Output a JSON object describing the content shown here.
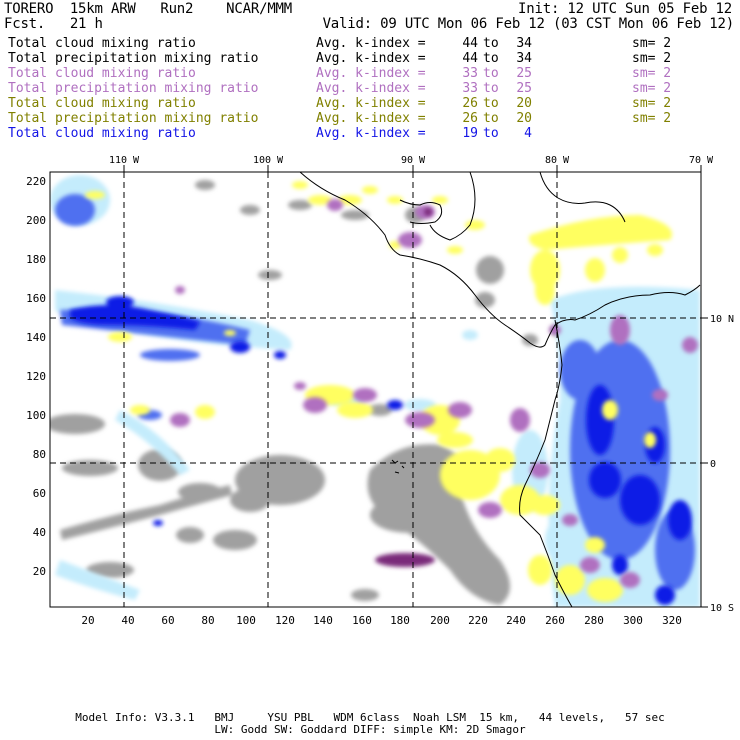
{
  "header": {
    "model": "TORERO  15km ARW   Run2    NCAR/MMM",
    "init": "Init: 12 UTC Sun 05 Feb 12",
    "fcst": "Fcst.   21 h",
    "valid": "Valid: 09 UTC Mon 06 Feb 12 (03 CST Mon 06 Feb 12)"
  },
  "legend": [
    {
      "field": "Total cloud mixing ratio",
      "avg": "Avg. k-index =",
      "lo": "44",
      "to": "to",
      "hi": "34",
      "sm": "sm= 2",
      "color": "#000000"
    },
    {
      "field": "Total precipitation mixing ratio",
      "avg": "Avg. k-index =",
      "lo": "44",
      "to": "to",
      "hi": "34",
      "sm": "sm= 2",
      "color": "#000000"
    },
    {
      "field": "Total cloud mixing ratio",
      "avg": "Avg. k-index =",
      "lo": "33",
      "to": "to",
      "hi": "25",
      "sm": "sm= 2",
      "color": "#b070c0"
    },
    {
      "field": "Total precipitation mixing ratio",
      "avg": "Avg. k-index =",
      "lo": "33",
      "to": "to",
      "hi": "25",
      "sm": "sm= 2",
      "color": "#b070c0"
    },
    {
      "field": "Total cloud mixing ratio",
      "avg": "Avg. k-index =",
      "lo": "26",
      "to": "to",
      "hi": "20",
      "sm": "sm= 2",
      "color": "#808000"
    },
    {
      "field": "Total precipitation mixing ratio",
      "avg": "Avg. k-index =",
      "lo": "26",
      "to": "to",
      "hi": "20",
      "sm": "sm= 2",
      "color": "#808000"
    },
    {
      "field": "Total cloud mixing ratio",
      "avg": "Avg. k-index =",
      "lo": "19",
      "to": "to",
      "hi": "4",
      "sm": "",
      "color": "#1414e6"
    }
  ],
  "map": {
    "lon_labels": [
      "110 W",
      "100 W",
      "90 W",
      "80 W",
      "70 W"
    ],
    "lat_labels": [
      "10 N",
      "0",
      "10 S"
    ],
    "x_ticks": [
      "20",
      "40",
      "60",
      "80",
      "100",
      "120",
      "140",
      "160",
      "180",
      "200",
      "220",
      "240",
      "260",
      "280",
      "300",
      "320"
    ],
    "y_ticks": [
      "220",
      "200",
      "180",
      "160",
      "140",
      "120",
      "100",
      "80",
      "60",
      "40",
      "20"
    ],
    "fill_colors": {
      "gray": "#a0a0a0",
      "purple": "#b070c0",
      "dark_purple": "#7a2a7a",
      "yellow": "#ffff60",
      "light_blue": "#c4ecfc",
      "mid_blue": "#5070f0",
      "dark_blue": "#0a1ee6"
    }
  },
  "footer": {
    "line1": "Model Info: V3.3.1   BMJ     YSU PBL   WDM 6class  Noah LSM  15 km,   44 levels,   57 sec",
    "line2": "LW: Godd SW: Goddard DIFF: simple KM: 2D Smagor"
  }
}
